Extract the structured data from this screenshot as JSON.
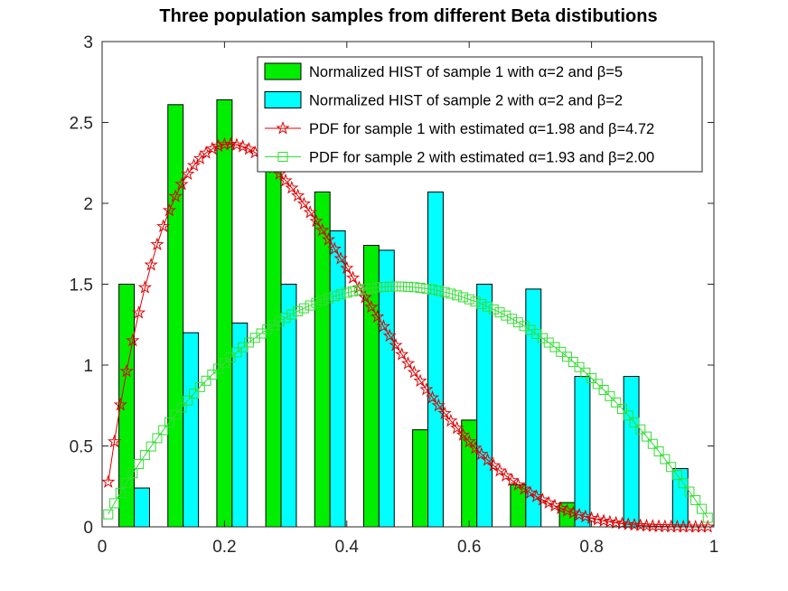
{
  "chart_data": {
    "type": "bar",
    "title": "Three population samples from different Beta distibutions",
    "xlabel": "",
    "ylabel": "",
    "xlim": [
      0,
      1
    ],
    "ylim": [
      0,
      3
    ],
    "xticks": [
      0,
      0.2,
      0.4,
      0.6,
      0.8,
      1
    ],
    "xtick_labels": [
      "0",
      "0.2",
      "0.4",
      "0.6",
      "0.8",
      "1"
    ],
    "yticks": [
      0,
      0.5,
      1,
      1.5,
      2,
      2.5,
      3
    ],
    "ytick_labels": [
      "0",
      "0.5",
      "1",
      "1.5",
      "2",
      "2.5",
      "3"
    ],
    "grid": false,
    "legend_position": "top-right",
    "series": [
      {
        "name": "Normalized HIST of sample 1 with α=2 and β=5",
        "kind": "bar",
        "color": "#00ee00",
        "x": [
          0.04,
          0.12,
          0.2,
          0.28,
          0.36,
          0.44,
          0.52,
          0.6,
          0.68,
          0.76
        ],
        "values": [
          1.5,
          2.61,
          2.64,
          2.2,
          2.07,
          1.74,
          0.6,
          0.66,
          0.26,
          0.15
        ]
      },
      {
        "name": "Normalized HIST of sample 2 with α=2 and β=2",
        "kind": "bar",
        "color": "#00ffff",
        "x": [
          0.065,
          0.145,
          0.225,
          0.305,
          0.385,
          0.465,
          0.545,
          0.625,
          0.705,
          0.785,
          0.865,
          0.945
        ],
        "values": [
          0.24,
          1.2,
          1.26,
          1.5,
          1.83,
          1.71,
          2.07,
          1.5,
          1.47,
          0.93,
          0.93,
          0.36
        ]
      },
      {
        "name": "PDF for sample 1 with estimated α=1.98 and β=4.72",
        "kind": "line",
        "marker": "pentagram",
        "color": "#dd0000",
        "alpha": 1.98,
        "beta": 4.72
      },
      {
        "name": "PDF for sample 2 with estimated α=1.93 and β=2.00",
        "kind": "line",
        "marker": "square",
        "color": "#33dd33",
        "alpha": 1.93,
        "beta": 2.0
      }
    ]
  }
}
